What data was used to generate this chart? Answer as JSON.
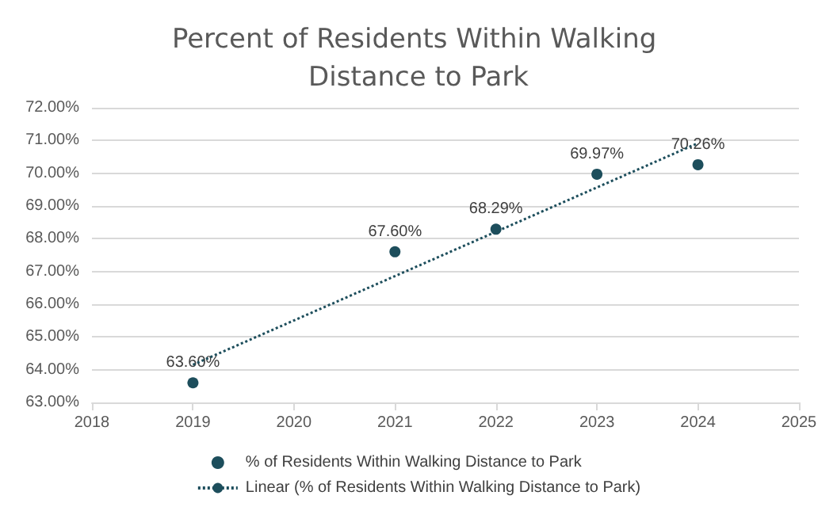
{
  "chart_data": {
    "type": "scatter",
    "title": "Percent of Residents Within Walking Distance to Park",
    "xlim": [
      2018,
      2025
    ],
    "xticks": [
      2018,
      2019,
      2020,
      2021,
      2022,
      2023,
      2024,
      2025
    ],
    "ylim": [
      63,
      72
    ],
    "yticks": [
      {
        "value": 63,
        "label": "63.00%"
      },
      {
        "value": 64,
        "label": "64.00%"
      },
      {
        "value": 65,
        "label": "65.00%"
      },
      {
        "value": 66,
        "label": "66.00%"
      },
      {
        "value": 67,
        "label": "67.00%"
      },
      {
        "value": 68,
        "label": "68.00%"
      },
      {
        "value": 69,
        "label": "69.00%"
      },
      {
        "value": 70,
        "label": "70.00%"
      },
      {
        "value": 71,
        "label": "71.00%"
      },
      {
        "value": 72,
        "label": "72.00%"
      }
    ],
    "grid": "y",
    "legend": "bottom",
    "marker": "circle",
    "series": [
      {
        "name": "% of Residents Within Walking Distance to Park",
        "color": "#1d4e5c",
        "x": [
          2019,
          2021,
          2022,
          2023,
          2024
        ],
        "values": [
          63.6,
          67.6,
          68.29,
          69.97,
          70.26
        ],
        "value_labels": [
          "63.60%",
          "67.60%",
          "68.29%",
          "69.97%",
          "70.26%"
        ]
      },
      {
        "type": "line",
        "name": "Linear (% of Residents Within Walking Distance to Park)",
        "color": "#1d4e5c",
        "x": [
          2019,
          2024
        ],
        "values": [
          64.15,
          70.92
        ],
        "line_style": "dotted",
        "marker": "none"
      }
    ]
  }
}
